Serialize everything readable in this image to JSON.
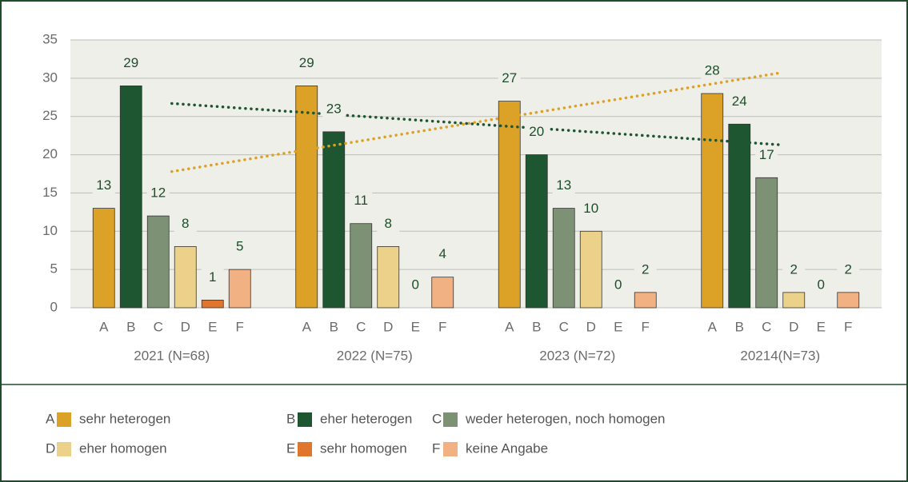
{
  "chart_data": {
    "type": "grouped-bar",
    "categories": [
      "2021 (N=68)",
      "2022 (N=75)",
      "2023 (N=72)",
      "20214(N=73)"
    ],
    "series": [
      {
        "key": "A",
        "name": "sehr heterogen",
        "color": "#dca227",
        "values": [
          13,
          29,
          27,
          28
        ],
        "trendline": true
      },
      {
        "key": "B",
        "name": "eher heterogen",
        "color": "#1e5631",
        "values": [
          29,
          23,
          20,
          24
        ],
        "trendline": true
      },
      {
        "key": "C",
        "name": "weder heterogen, noch homogen",
        "color": "#7d9275",
        "values": [
          12,
          11,
          13,
          17
        ]
      },
      {
        "key": "D",
        "name": "eher homogen",
        "color": "#ecd18a",
        "values": [
          8,
          8,
          10,
          2
        ]
      },
      {
        "key": "E",
        "name": "sehr homogen",
        "color": "#e0752d",
        "values": [
          1,
          0,
          0,
          0
        ]
      },
      {
        "key": "F",
        "name": "keine Angabe",
        "color": "#f2b183",
        "values": [
          5,
          4,
          2,
          2
        ]
      }
    ],
    "ylim": [
      0,
      35
    ],
    "yticks": [
      0,
      5,
      10,
      15,
      20,
      25,
      30,
      35
    ],
    "grid": true
  }
}
